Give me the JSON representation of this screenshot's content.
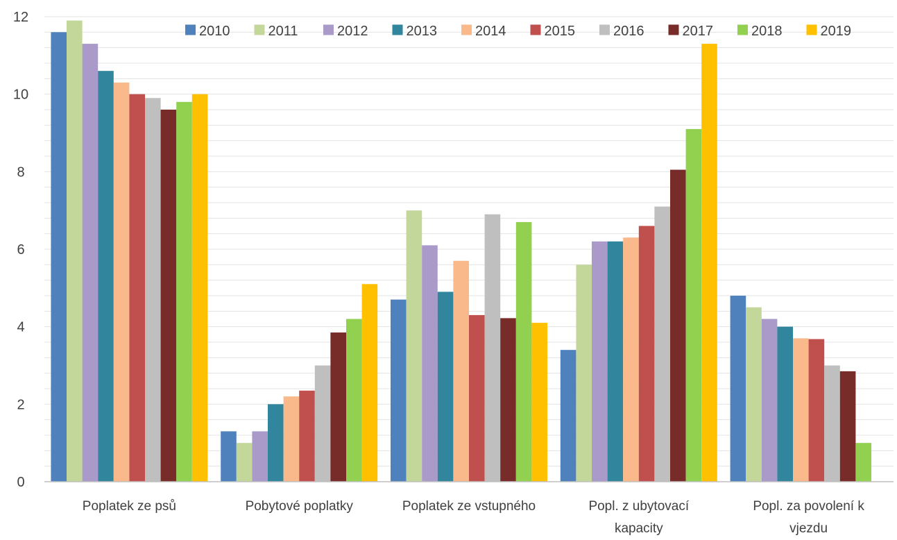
{
  "chart_data": {
    "type": "bar",
    "title": "",
    "xlabel": "",
    "ylabel": "",
    "ylim": [
      0,
      12
    ],
    "yticks": [
      "0",
      "2",
      "4",
      "6",
      "8",
      "10",
      "12"
    ],
    "grid": "horizontal",
    "legend_position": "top",
    "categories": [
      [
        "Poplatek ze psů"
      ],
      [
        "Pobytové poplatky"
      ],
      [
        "Poplatek ze vstupného"
      ],
      [
        "Popl. z ubytovací",
        "kapacity"
      ],
      [
        "Popl. za povolení k",
        "vjezdu"
      ]
    ],
    "series": [
      {
        "name": "2010",
        "color": "#4f81bd",
        "values": [
          11.6,
          1.3,
          4.7,
          3.4,
          4.8
        ]
      },
      {
        "name": "2011",
        "color": "#c4d79b",
        "values": [
          11.9,
          1.0,
          7.0,
          5.6,
          4.5
        ]
      },
      {
        "name": "2012",
        "color": "#a99ac9",
        "values": [
          11.3,
          1.3,
          6.1,
          6.2,
          4.2
        ]
      },
      {
        "name": "2013",
        "color": "#31859c",
        "values": [
          10.6,
          2.0,
          4.9,
          6.2,
          4.0
        ]
      },
      {
        "name": "2014",
        "color": "#f9b98a",
        "values": [
          10.3,
          2.2,
          5.7,
          6.3,
          3.7
        ]
      },
      {
        "name": "2015",
        "color": "#c0504d",
        "values": [
          10.0,
          2.35,
          4.3,
          6.6,
          3.68
        ]
      },
      {
        "name": "2016",
        "color": "#bfbfbf",
        "values": [
          9.9,
          3.0,
          6.9,
          7.1,
          3.0
        ]
      },
      {
        "name": "2017",
        "color": "#772c2a",
        "values": [
          9.6,
          3.85,
          4.22,
          8.05,
          2.85
        ]
      },
      {
        "name": "2018",
        "color": "#92d050",
        "values": [
          9.8,
          4.2,
          6.7,
          9.1,
          1.0
        ]
      },
      {
        "name": "2019",
        "color": "#ffc000",
        "values": [
          10.0,
          5.1,
          4.1,
          11.3,
          null
        ]
      }
    ]
  }
}
